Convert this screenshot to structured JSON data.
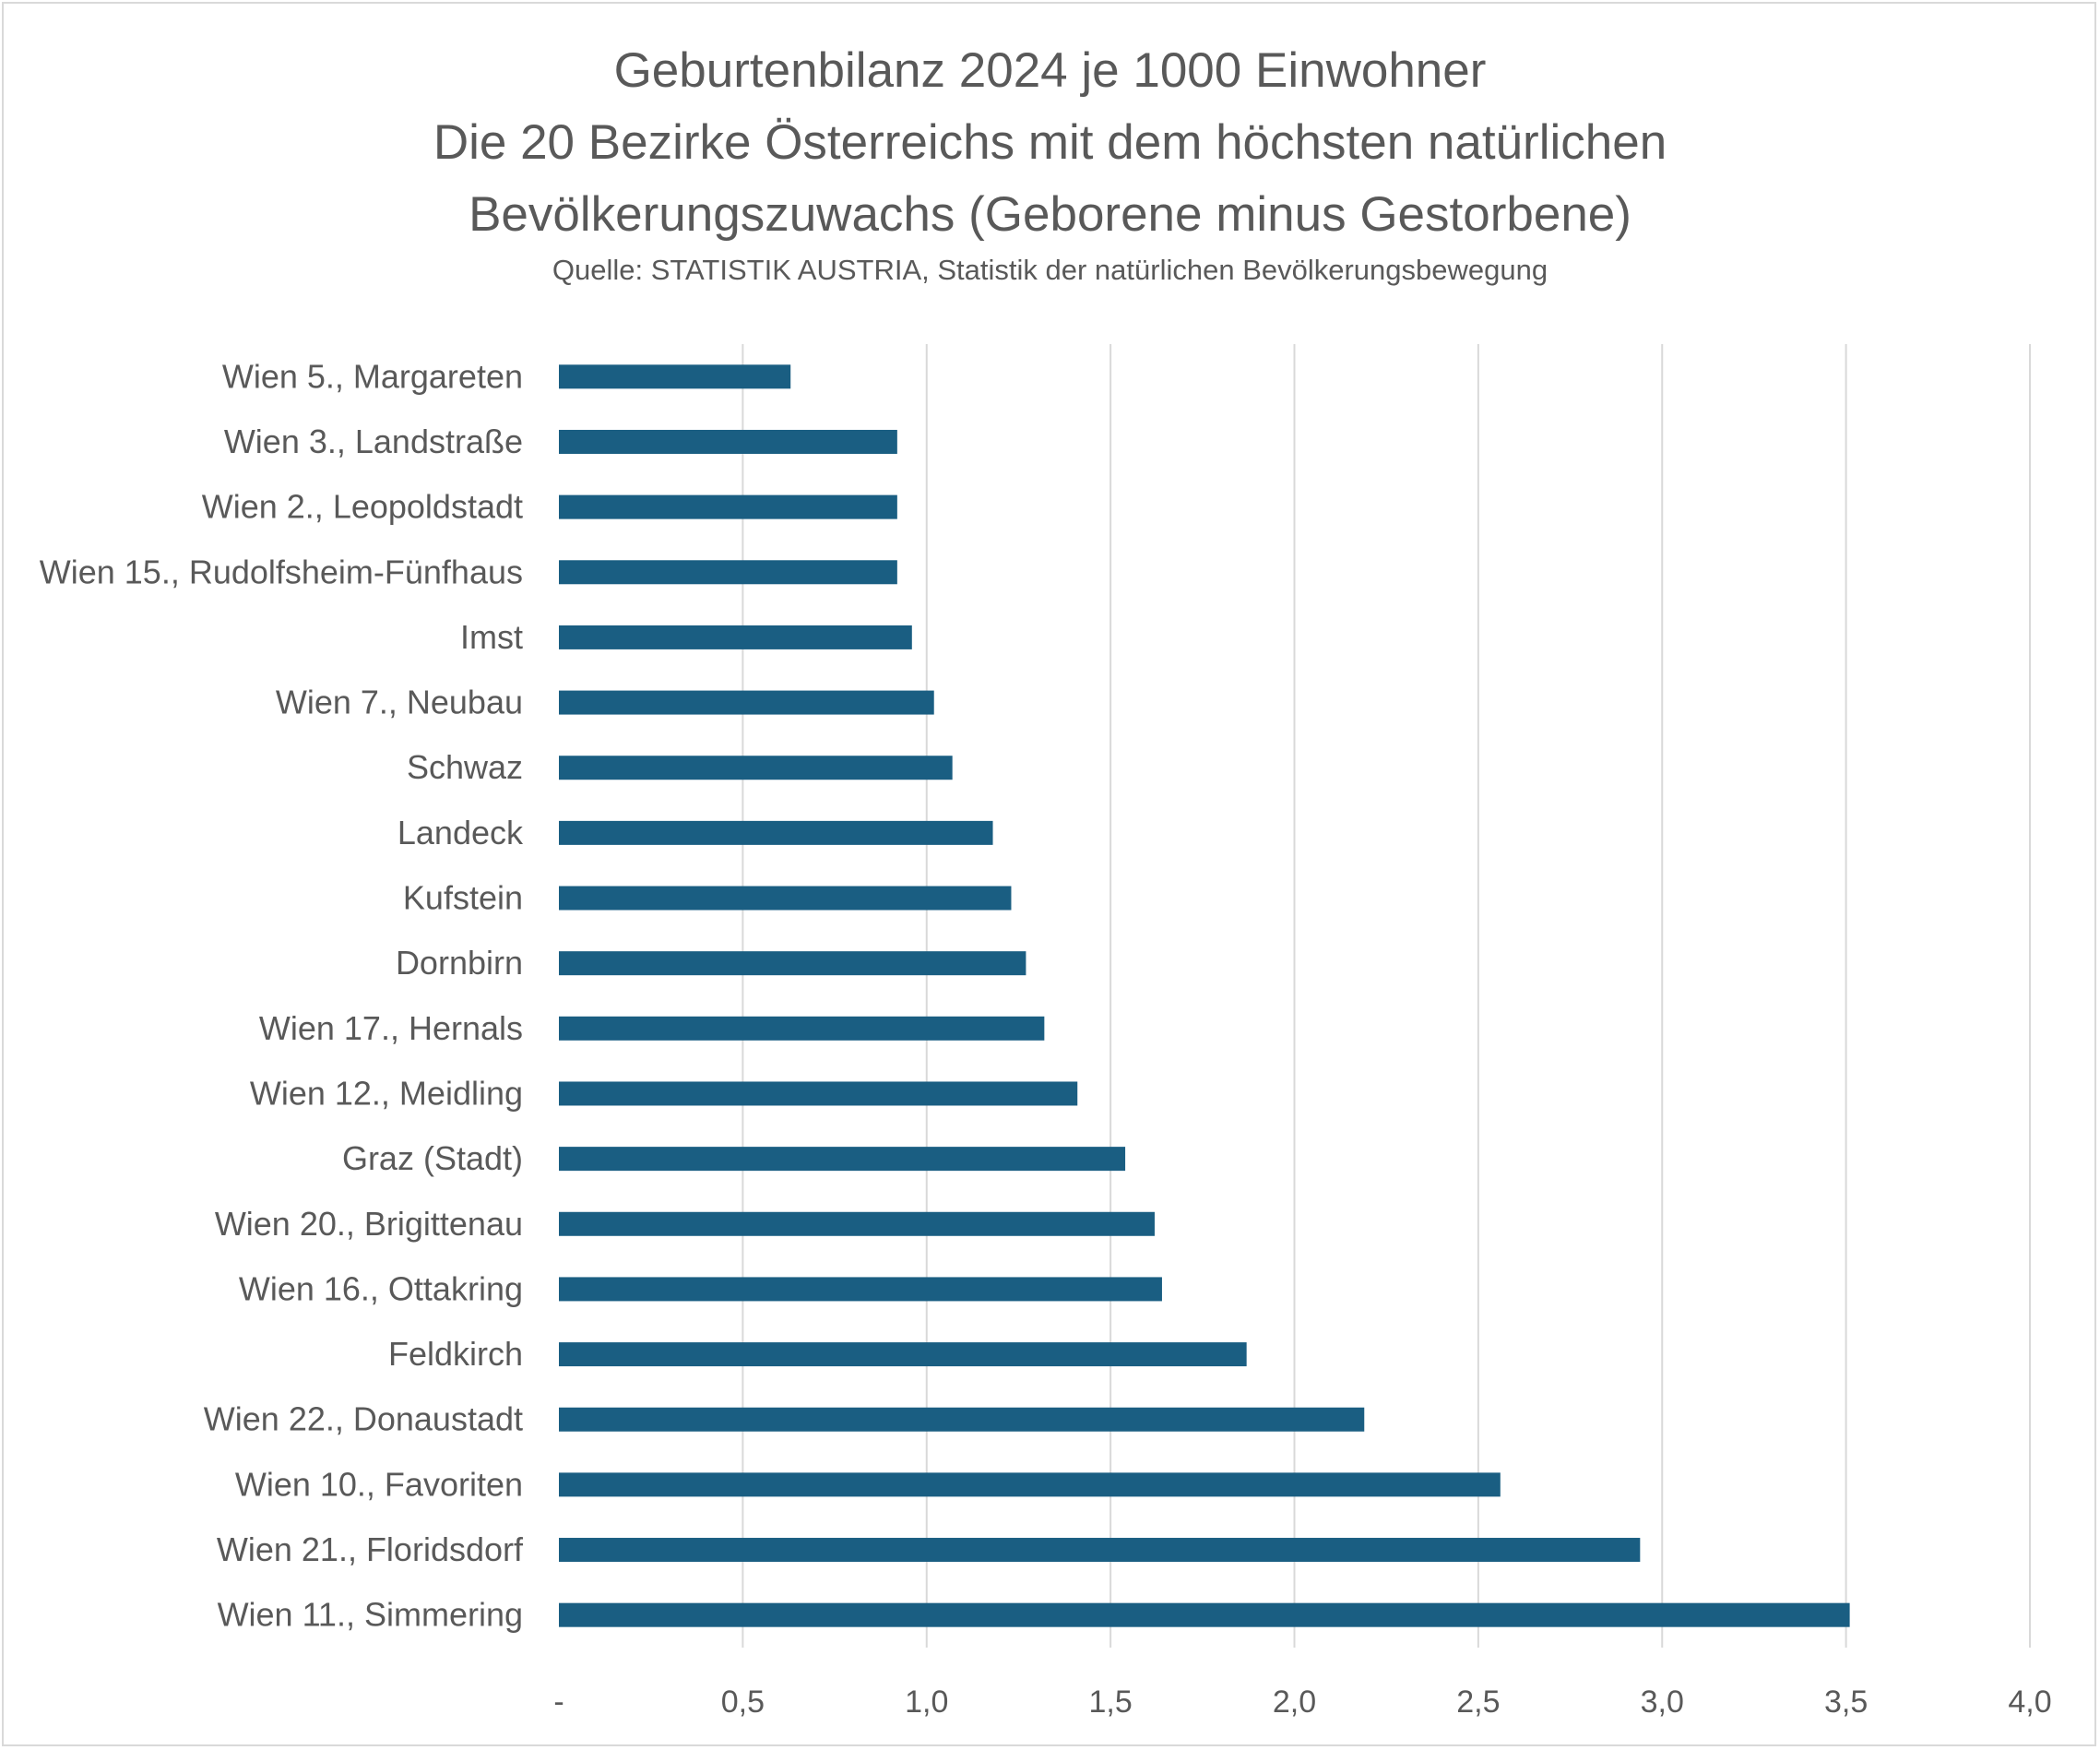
{
  "chart_data": {
    "type": "bar",
    "orientation": "horizontal",
    "title_lines": [
      "Geburtenbilanz 2024 je 1000 Einwohner",
      "Die 20 Bezirke Österreichs mit dem höchsten natürlichen",
      "Bevölkerungszuwachs (Geborene minus Gestorbene)"
    ],
    "subtitle": "Quelle: STATISTIK AUSTRIA, Statistik der natürlichen Bevölkerungsbewegung",
    "categories": [
      "Wien 5., Margareten",
      "Wien 3., Landstraße",
      "Wien 2., Leopoldstadt",
      "Wien 15., Rudolfsheim-Fünfhaus",
      "Imst",
      "Wien 7., Neubau",
      "Schwaz",
      "Landeck",
      "Kufstein",
      "Dornbirn",
      "Wien 17., Hernals",
      "Wien 12., Meidling",
      "Graz (Stadt)",
      "Wien 20., Brigittenau",
      "Wien 16., Ottakring",
      "Feldkirch",
      "Wien 22., Donaustadt",
      "Wien 10., Favoriten",
      "Wien 21., Floridsdorf",
      "Wien 11., Simmering"
    ],
    "values": [
      0.63,
      0.92,
      0.92,
      0.92,
      0.96,
      1.02,
      1.07,
      1.18,
      1.23,
      1.27,
      1.32,
      1.41,
      1.54,
      1.62,
      1.64,
      1.87,
      2.19,
      2.56,
      2.94,
      3.51
    ],
    "xlim": [
      0,
      4.0
    ],
    "xticks": [
      "-",
      "0,5",
      "1,0",
      "1,5",
      "2,0",
      "2,5",
      "3,0",
      "3,5",
      "4,0"
    ],
    "grid": true,
    "bar_color": "#1a5e82",
    "grid_color": "#d9d9d9",
    "text_color": "#595959"
  }
}
